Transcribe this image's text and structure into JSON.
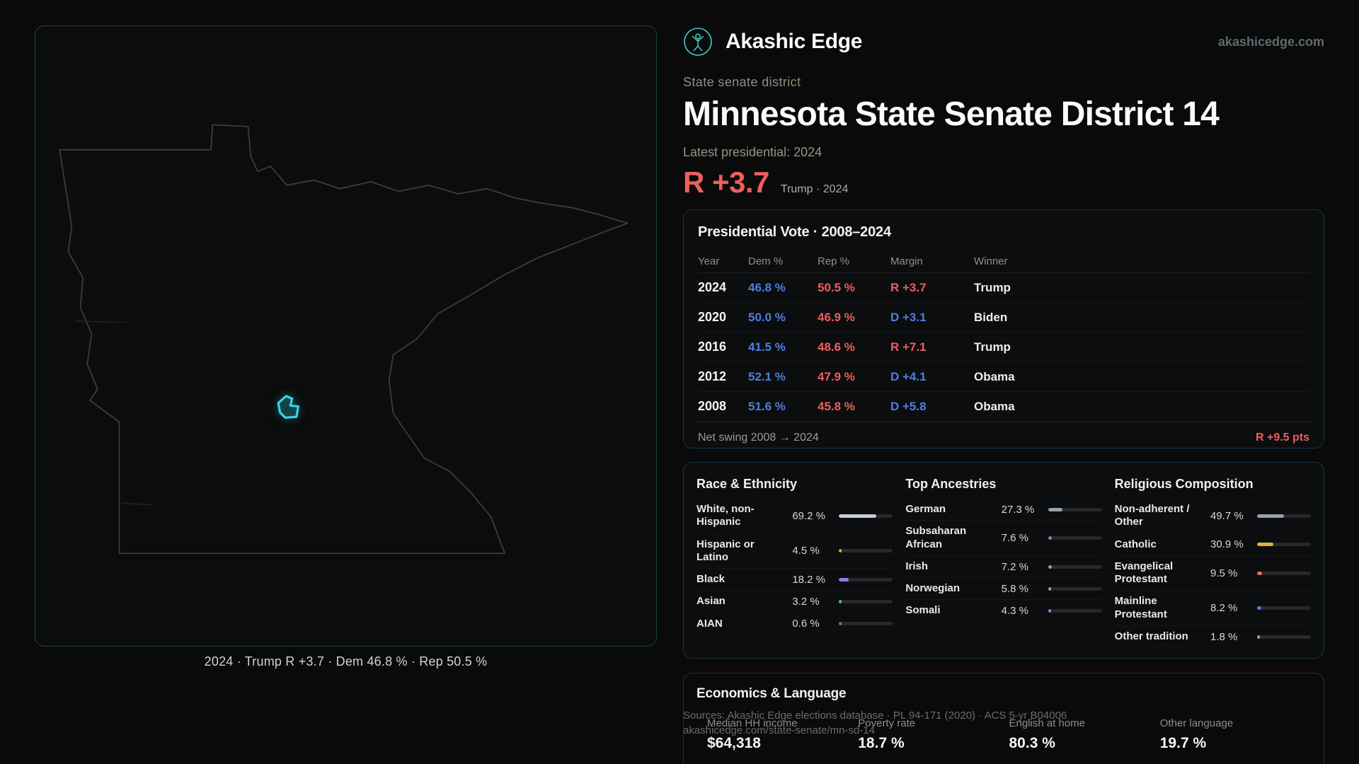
{
  "site": {
    "brand": "Akashic Edge",
    "domain": "akashicedge.com"
  },
  "map": {
    "caption": "2024 · Trump R +3.7 · Dem 46.8 % · Rep 50.5 %",
    "outline_color": "#3b3f42",
    "district_color": "#35d6e8"
  },
  "header": {
    "kicker": "State senate district",
    "title": "Minnesota State Senate District 14",
    "latest_label": "Latest presidential: 2024",
    "margin_value": "R +3.7",
    "margin_color": "#ee5e5e",
    "margin_sub": "Trump · 2024"
  },
  "presidential": {
    "title": "Presidential Vote · 2008–2024",
    "columns": [
      "Year",
      "Dem %",
      "Rep %",
      "Margin",
      "Winner"
    ],
    "rows": [
      {
        "year": "2024",
        "dem": "46.8 %",
        "rep": "50.5 %",
        "margin": "R +3.7",
        "margin_color": "#ee5e5e",
        "winner": "Trump"
      },
      {
        "year": "2020",
        "dem": "50.0 %",
        "rep": "46.9 %",
        "margin": "D +3.1",
        "margin_color": "#4d7fe0",
        "winner": "Biden"
      },
      {
        "year": "2016",
        "dem": "41.5 %",
        "rep": "48.6 %",
        "margin": "R +7.1",
        "margin_color": "#ee5e5e",
        "winner": "Trump"
      },
      {
        "year": "2012",
        "dem": "52.1 %",
        "rep": "47.9 %",
        "margin": "D +4.1",
        "margin_color": "#4d7fe0",
        "winner": "Obama"
      },
      {
        "year": "2008",
        "dem": "51.6 %",
        "rep": "45.8 %",
        "margin": "D +5.8",
        "margin_color": "#4d7fe0",
        "winner": "Obama"
      }
    ],
    "net_swing_label": "Net swing 2008 → 2024",
    "net_swing_value": "R +9.5 pts",
    "net_swing_color": "#ee5e5e"
  },
  "demographics": {
    "race": {
      "title": "Race & Ethnicity",
      "rows": [
        {
          "label": "White, non-Hispanic",
          "value": "69.2 %",
          "pct": 69.2,
          "color": "#c7cbd4"
        },
        {
          "label": "Hispanic or Latino",
          "value": "4.5 %",
          "pct": 4.5,
          "color": "#e2a23b"
        },
        {
          "label": "Black",
          "value": "18.2 %",
          "pct": 18.2,
          "color": "#8d7bef"
        },
        {
          "label": "Asian",
          "value": "3.2 %",
          "pct": 3.2,
          "color": "#43c98a"
        },
        {
          "label": "AIAN",
          "value": "0.6 %",
          "pct": 0.6,
          "color": "#c05a4f"
        }
      ]
    },
    "ancestries": {
      "title": "Top Ancestries",
      "rows": [
        {
          "label": "German",
          "value": "27.3 %",
          "pct": 27.3,
          "color": "#9aa1ac"
        },
        {
          "label": "Subsaharan African",
          "value": "7.6 %",
          "pct": 7.6,
          "color": "#8d7bef"
        },
        {
          "label": "Irish",
          "value": "7.2 %",
          "pct": 7.2,
          "color": "#9aa1ac"
        },
        {
          "label": "Norwegian",
          "value": "5.8 %",
          "pct": 5.8,
          "color": "#9aa1ac"
        },
        {
          "label": "Somali",
          "value": "4.3 %",
          "pct": 4.3,
          "color": "#8d7bef"
        }
      ]
    },
    "religion": {
      "title": "Religious Composition",
      "rows": [
        {
          "label": "Non-adherent / Other",
          "value": "49.7 %",
          "pct": 49.7,
          "color": "#9aa1ac"
        },
        {
          "label": "Catholic",
          "value": "30.9 %",
          "pct": 30.9,
          "color": "#e0b23a"
        },
        {
          "label": "Evangelical Protestant",
          "value": "9.5 %",
          "pct": 9.5,
          "color": "#ee6a5e"
        },
        {
          "label": "Mainline Protestant",
          "value": "8.2 %",
          "pct": 8.2,
          "color": "#4d7fe0"
        },
        {
          "label": "Other tradition",
          "value": "1.8 %",
          "pct": 1.8,
          "color": "#9aa1ac"
        }
      ]
    }
  },
  "economics": {
    "title": "Economics & Language",
    "stats": [
      {
        "label": "Median HH income",
        "value": "$64,318"
      },
      {
        "label": "Poverty rate",
        "value": "18.7 %"
      },
      {
        "label": "English at home",
        "value": "80.3 %"
      },
      {
        "label": "Other language",
        "value": "19.7 %"
      }
    ]
  },
  "footer": {
    "sources": "Sources: Akashic Edge elections database · PL 94-171 (2020) · ACS 5-yr B04006",
    "permalink": "akashicedge.com/state-senate/mn-sd-14"
  }
}
